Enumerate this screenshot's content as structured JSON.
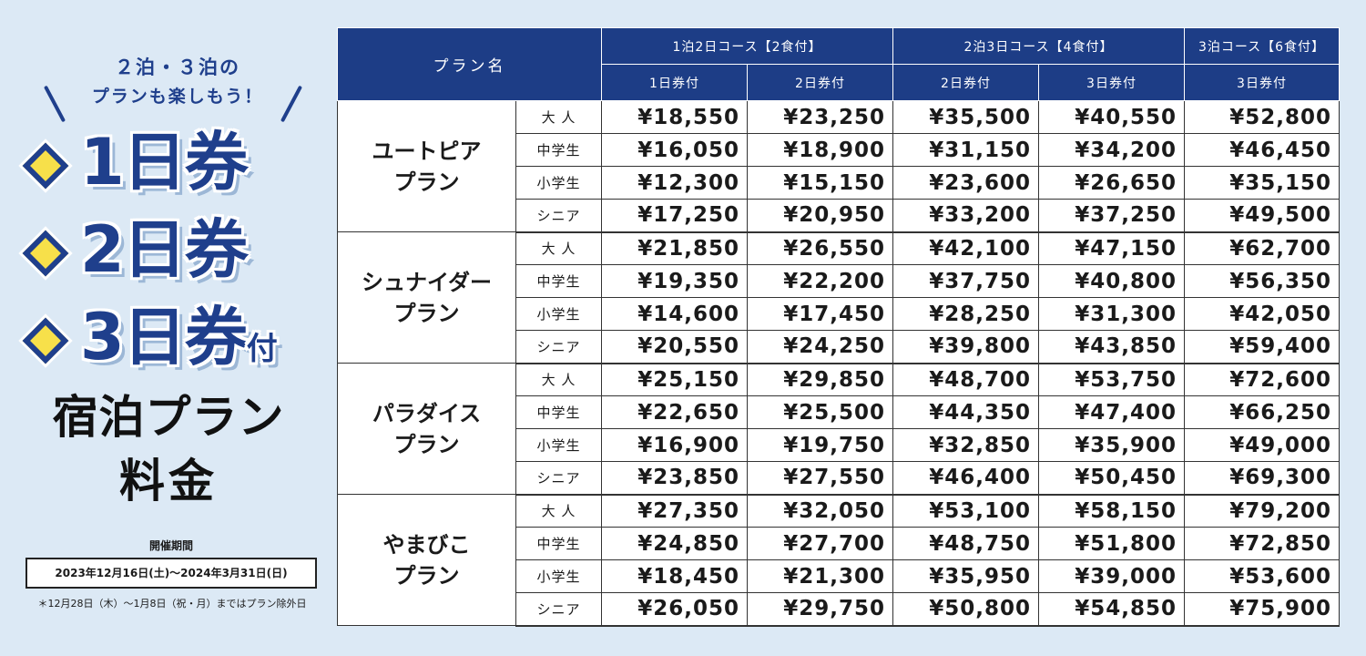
{
  "promo": {
    "tagline_line1": "２泊・３泊の",
    "tagline_line2": "プランも楽しもう！",
    "tickets": [
      {
        "label": "1日券",
        "suffix": ""
      },
      {
        "label": "2日券",
        "suffix": ""
      },
      {
        "label": "3日券",
        "suffix": "付"
      }
    ],
    "title_line1": "宿泊プラン",
    "title_line2": "料金",
    "period_label": "開催期間",
    "period": "2023年12月16日(土)〜2024年3月31日(日)",
    "note": "＊12月28日（木）〜1月8日（祝・月）まではプラン除外日"
  },
  "table": {
    "plan_header": "プラン名",
    "course_headers": [
      "1泊2日コース【2食付】",
      "2泊3日コース【4食付】",
      "3泊コース【6食付】"
    ],
    "ticket_headers": [
      "1日券付",
      "2日券付",
      "2日券付",
      "3日券付",
      "3日券付"
    ],
    "categories": [
      "大 人",
      "中学生",
      "小学生",
      "シニア"
    ],
    "plans": [
      {
        "name_line1": "ユートピア",
        "name_line2": "プラン",
        "rows": [
          [
            "¥18,550",
            "¥23,250",
            "¥35,500",
            "¥40,550",
            "¥52,800"
          ],
          [
            "¥16,050",
            "¥18,900",
            "¥31,150",
            "¥34,200",
            "¥46,450"
          ],
          [
            "¥12,300",
            "¥15,150",
            "¥23,600",
            "¥26,650",
            "¥35,150"
          ],
          [
            "¥17,250",
            "¥20,950",
            "¥33,200",
            "¥37,250",
            "¥49,500"
          ]
        ]
      },
      {
        "name_line1": "シュナイダー",
        "name_line2": "プラン",
        "rows": [
          [
            "¥21,850",
            "¥26,550",
            "¥42,100",
            "¥47,150",
            "¥62,700"
          ],
          [
            "¥19,350",
            "¥22,200",
            "¥37,750",
            "¥40,800",
            "¥56,350"
          ],
          [
            "¥14,600",
            "¥17,450",
            "¥28,250",
            "¥31,300",
            "¥42,050"
          ],
          [
            "¥20,550",
            "¥24,250",
            "¥39,800",
            "¥43,850",
            "¥59,400"
          ]
        ]
      },
      {
        "name_line1": "パラダイス",
        "name_line2": "プラン",
        "rows": [
          [
            "¥25,150",
            "¥29,850",
            "¥48,700",
            "¥53,750",
            "¥72,600"
          ],
          [
            "¥22,650",
            "¥25,500",
            "¥44,350",
            "¥47,400",
            "¥66,250"
          ],
          [
            "¥16,900",
            "¥19,750",
            "¥32,850",
            "¥35,900",
            "¥49,000"
          ],
          [
            "¥23,850",
            "¥27,550",
            "¥46,400",
            "¥50,450",
            "¥69,300"
          ]
        ]
      },
      {
        "name_line1": "やまびこ",
        "name_line2": "プラン",
        "rows": [
          [
            "¥27,350",
            "¥32,050",
            "¥53,100",
            "¥58,150",
            "¥79,200"
          ],
          [
            "¥24,850",
            "¥27,700",
            "¥48,750",
            "¥51,800",
            "¥72,850"
          ],
          [
            "¥18,450",
            "¥21,300",
            "¥35,950",
            "¥39,000",
            "¥53,600"
          ],
          [
            "¥26,050",
            "¥29,750",
            "¥50,800",
            "¥54,850",
            "¥75,900"
          ]
        ]
      }
    ]
  },
  "colors": {
    "background": "#dce9f5",
    "navy": "#1d3d86",
    "accent_yellow": "#f7e04a"
  }
}
